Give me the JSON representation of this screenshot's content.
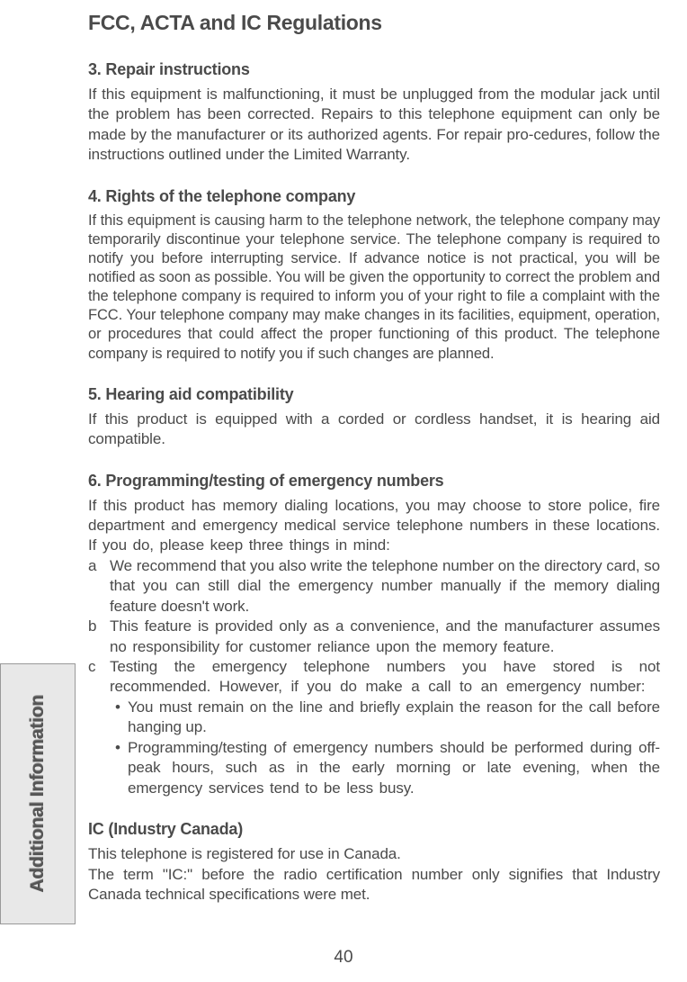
{
  "pageTitle": "FCC, ACTA and IC Regulations",
  "sideTab": "Additional Information",
  "pageNumber": "40",
  "sections": {
    "s3": {
      "heading": "3. Repair instructions",
      "body": "If this equipment is malfunctioning, it must be unplugged from the modular jack until the problem has been corrected. Repairs to this telephone equipment can only be made by the manufacturer or its authorized agents. For repair pro-cedures, follow the instructions outlined under the Limited Warranty."
    },
    "s4": {
      "heading": "4. Rights of the telephone company",
      "body": "If this equipment is causing harm to the telephone network, the telephone company may temporarily discontinue your telephone service. The telephone company is required to notify you before interrupting service. If advance notice is not practical, you will be notified as soon as possible. You will be given the opportunity to correct the problem and the telephone company is required to inform you of your right to file a complaint with the FCC. Your telephone company may make changes in its facilities, equipment, operation, or procedures that could affect the proper functioning of this product. The telephone company is required to notify you if such changes are planned."
    },
    "s5": {
      "heading": "5. Hearing aid compatibility",
      "body": "If this product is equipped with a corded or cordless handset, it is hearing aid compatible."
    },
    "s6": {
      "heading": "6. Programming/testing of emergency numbers",
      "intro": "If this product has memory dialing locations, you may choose to store police, fire department and emergency medical service telephone numbers in these locations. If you do, please keep three things in mind:",
      "items": {
        "a": {
          "marker": "a",
          "text": "We recommend that you also write the telephone number on the directory card, so that you can still dial the emergency number manually if the memory dialing feature doesn't work."
        },
        "b": {
          "marker": "b",
          "text": "This feature is provided only as a convenience, and the manufacturer assumes no responsibility for customer reliance upon the memory feature."
        },
        "c": {
          "marker": "c",
          "text": "Testing the emergency telephone numbers you have stored is not recommended. However, if you do make a call to an emergency number:"
        }
      },
      "bullets": {
        "b1": "You must remain on the line and briefly explain the reason for the call before hanging up.",
        "b2": "Programming/testing of emergency numbers should be performed during off-peak hours, such as in the early morning or late evening, when the emergency services tend to be less busy."
      }
    },
    "ic": {
      "heading": "IC (Industry Canada)",
      "line1": "This telephone is registered for use in Canada.",
      "line2": "The term \"IC:\" before the radio certification number only signifies that Industry Canada technical specifications were met."
    }
  }
}
